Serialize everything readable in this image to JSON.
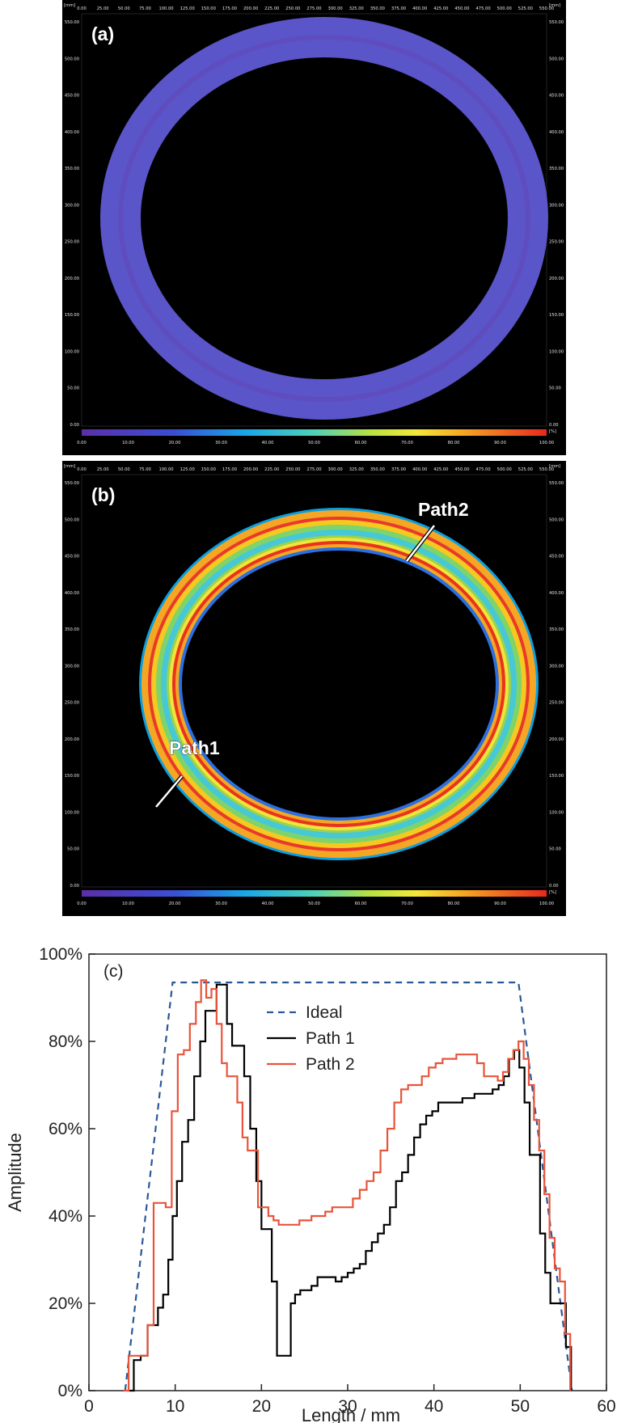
{
  "panel_a": {
    "label": "(a)",
    "unit_left": "[mm]",
    "unit_right": "[mm]",
    "scale_unit": "[%]",
    "x_ticks": [
      "0.00",
      "25.00",
      "50.00",
      "75.00",
      "100.00",
      "125.00",
      "150.00",
      "175.00",
      "200.00",
      "225.00",
      "250.00",
      "275.00",
      "300.00",
      "325.00",
      "350.00",
      "375.00",
      "400.00",
      "425.00",
      "450.00",
      "475.00",
      "500.00",
      "525.00",
      "550.00"
    ],
    "y_ticks": [
      "550.00",
      "500.00",
      "450.00",
      "400.00",
      "350.00",
      "300.00",
      "250.00",
      "200.00",
      "150.00",
      "100.00",
      "50.00",
      "0.00"
    ],
    "scale_ticks": [
      "0.00",
      "10.00",
      "20.00",
      "30.00",
      "40.00",
      "50.00",
      "60.00",
      "70.00",
      "80.00",
      "90.00",
      "100.00"
    ]
  },
  "panel_b": {
    "label": "(b)",
    "unit_left": "[mm]",
    "unit_right": "[mm]",
    "scale_unit": "[%]",
    "path1_label": "Path1",
    "path2_label": "Path2",
    "x_ticks": [
      "0.00",
      "25.00",
      "50.00",
      "75.00",
      "100.00",
      "125.00",
      "150.00",
      "175.00",
      "200.00",
      "225.00",
      "250.00",
      "275.00",
      "300.00",
      "325.00",
      "350.00",
      "375.00",
      "400.00",
      "425.00",
      "450.00",
      "475.00",
      "500.00",
      "525.00",
      "550.00"
    ],
    "y_ticks": [
      "550.00",
      "500.00",
      "450.00",
      "400.00",
      "350.00",
      "300.00",
      "250.00",
      "200.00",
      "150.00",
      "100.00",
      "50.00",
      "0.00"
    ],
    "scale_ticks": [
      "0.00",
      "10.00",
      "20.00",
      "30.00",
      "40.00",
      "50.00",
      "60.00",
      "70.00",
      "80.00",
      "90.00",
      "100.00"
    ]
  },
  "colors": {
    "ideal": "#2b5797",
    "path1": "#000000",
    "path2": "#e8543a",
    "ring_a": "#5a55c8"
  },
  "chart_data": {
    "type": "line",
    "panel_label": "(c)",
    "xlabel": "Length / mm",
    "ylabel": "Amplitude",
    "xlim": [
      0,
      60
    ],
    "ylim": [
      0,
      100
    ],
    "x_ticks": [
      "0",
      "10",
      "20",
      "30",
      "40",
      "50",
      "60"
    ],
    "y_ticks": [
      "0%",
      "20%",
      "40%",
      "60%",
      "80%",
      "100%"
    ],
    "legend_position": "top-center",
    "series": [
      {
        "name": "Ideal",
        "style": "dashed",
        "x": [
          4.2,
          9.7,
          49.8,
          56.0
        ],
        "y": [
          0,
          93.5,
          93.5,
          0
        ]
      },
      {
        "name": "Path 1",
        "style": "solid",
        "x": [
          4.6,
          5.2,
          6.0,
          6.8,
          7.5,
          8.0,
          8.6,
          9.2,
          9.7,
          10.2,
          10.8,
          11.5,
          12.2,
          12.9,
          13.5,
          14.2,
          14.8,
          15.5,
          16.0,
          16.6,
          17.3,
          18.0,
          18.7,
          19.4,
          20.0,
          20.6,
          21.2,
          21.8,
          22.3,
          22.9,
          23.4,
          23.9,
          24.5,
          25.1,
          25.8,
          26.5,
          27.2,
          27.9,
          28.6,
          29.3,
          30.0,
          30.7,
          31.4,
          32.1,
          32.8,
          33.5,
          34.2,
          34.9,
          35.6,
          36.3,
          37.0,
          37.7,
          38.4,
          39.1,
          39.8,
          40.5,
          41.2,
          41.9,
          42.6,
          43.3,
          44.0,
          44.7,
          45.4,
          46.1,
          46.8,
          47.5,
          48.1,
          48.7,
          49.3,
          49.9,
          50.5,
          51.1,
          51.7,
          52.3,
          52.9,
          53.5,
          54.1,
          54.7,
          55.3,
          55.9
        ],
        "y": [
          0,
          7,
          8,
          15,
          15,
          19,
          22,
          30,
          40,
          48,
          57,
          62,
          72,
          80,
          87,
          87,
          93,
          93,
          84,
          79,
          79,
          72,
          60,
          48,
          37,
          37,
          25,
          8,
          8,
          8,
          20,
          22,
          23,
          23,
          24,
          26,
          26,
          26,
          25,
          26,
          27,
          28,
          29,
          32,
          34,
          36,
          38,
          42,
          48,
          50,
          54,
          58,
          61,
          63,
          64,
          66,
          66,
          66,
          66,
          67,
          67,
          68,
          68,
          68,
          69,
          70,
          72,
          76,
          78,
          74,
          66,
          54,
          54,
          36,
          27,
          20,
          20,
          20,
          10,
          0
        ]
      },
      {
        "name": "Path 2",
        "style": "solid",
        "x": [
          4.0,
          4.6,
          5.2,
          6.0,
          6.8,
          7.5,
          8.2,
          8.9,
          9.6,
          10.3,
          11.0,
          11.7,
          12.4,
          13.0,
          13.6,
          14.2,
          14.8,
          15.4,
          16.0,
          16.6,
          17.2,
          17.8,
          18.4,
          19.0,
          19.6,
          20.2,
          20.8,
          21.4,
          22.0,
          22.6,
          23.2,
          23.8,
          24.4,
          25.0,
          25.8,
          26.6,
          27.4,
          28.2,
          29.0,
          29.8,
          30.6,
          31.4,
          32.2,
          33.0,
          33.8,
          34.6,
          35.4,
          36.2,
          37.0,
          37.8,
          38.6,
          39.4,
          40.2,
          41.0,
          41.8,
          42.6,
          43.4,
          44.2,
          45.0,
          45.8,
          46.6,
          47.4,
          48.0,
          48.6,
          49.2,
          49.8,
          50.4,
          51.0,
          51.6,
          52.2,
          52.8,
          53.4,
          54.0,
          54.6,
          55.2,
          55.8
        ],
        "y": [
          0,
          8,
          8,
          8,
          15,
          43,
          43,
          42,
          64,
          77,
          78,
          84,
          89,
          94,
          90,
          92,
          84,
          75,
          72,
          72,
          66,
          58,
          55,
          55,
          42,
          42,
          40,
          39,
          38,
          38,
          38,
          38,
          39,
          39,
          40,
          40,
          41,
          42,
          42,
          42,
          44,
          46,
          48,
          50,
          55,
          60,
          66,
          69,
          70,
          70,
          72,
          74,
          75,
          76,
          76,
          77,
          77,
          77,
          75,
          72,
          72,
          71,
          73,
          76,
          78,
          80,
          76,
          70,
          62,
          55,
          45,
          35,
          28,
          25,
          13,
          0
        ]
      }
    ]
  }
}
